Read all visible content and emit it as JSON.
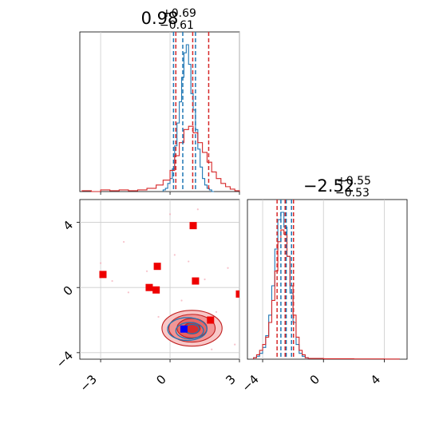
{
  "chart_data": [
    {
      "type": "histogram",
      "panel": "top-left",
      "title": {
        "median": "0.98",
        "upper": "+0.69",
        "lower": "−0.61"
      },
      "xlim": [
        -3.9,
        3.0
      ],
      "grid": true,
      "x_ticks": [
        -3,
        0,
        3
      ],
      "series": [
        {
          "name": "",
          "color": "#1f77b4",
          "bins": [
            -0.3,
            -0.2,
            -0.1,
            0.0,
            0.1,
            0.2,
            0.3,
            0.4,
            0.5,
            0.6,
            0.7,
            0.8,
            0.9,
            1.0,
            1.1,
            1.2,
            1.3,
            1.4,
            1.5,
            1.6,
            1.7,
            1.8,
            1.9
          ],
          "counts": [
            0.01,
            0.02,
            0.05,
            0.08,
            0.14,
            0.28,
            0.42,
            0.55,
            0.7,
            0.85,
            0.9,
            0.78,
            0.6,
            0.5,
            0.38,
            0.26,
            0.15,
            0.08,
            0.04,
            0.02,
            0.01,
            0.0
          ],
          "quantiles": [
            0.15,
            0.55,
            1.1
          ]
        },
        {
          "name": "",
          "color": "#d62728",
          "bins": [
            -3.8,
            -3.4,
            -3.0,
            -2.6,
            -2.2,
            -1.8,
            -1.4,
            -1.0,
            -0.6,
            -0.3,
            0.0,
            0.2,
            0.4,
            0.6,
            0.8,
            1.0,
            1.2,
            1.4,
            1.6,
            1.8,
            2.0,
            2.2,
            2.4,
            2.6,
            2.8,
            3.0
          ],
          "counts": [
            0.005,
            0.0,
            0.01,
            0.005,
            0.01,
            0.005,
            0.01,
            0.02,
            0.04,
            0.07,
            0.13,
            0.22,
            0.3,
            0.38,
            0.4,
            0.36,
            0.3,
            0.24,
            0.18,
            0.12,
            0.08,
            0.05,
            0.03,
            0.015,
            0.005
          ],
          "quantiles": [
            0.25,
            0.98,
            1.67
          ]
        }
      ]
    },
    {
      "type": "histogram",
      "panel": "bottom-right",
      "title": {
        "median": "−2.52",
        "upper": "+0.55",
        "lower": "−0.53"
      },
      "xlim": [
        -5.0,
        5.5
      ],
      "grid": true,
      "x_ticks": [
        -4,
        0,
        4
      ],
      "series": [
        {
          "name": "",
          "color": "#1f77b4",
          "bins": [
            -4.6,
            -4.4,
            -4.2,
            -4.0,
            -3.8,
            -3.6,
            -3.4,
            -3.2,
            -3.0,
            -2.8,
            -2.6,
            -2.4,
            -2.2,
            -2.0,
            -1.8,
            -1.6,
            -1.4,
            -1.2,
            -1.0
          ],
          "counts": [
            0.01,
            0.02,
            0.04,
            0.08,
            0.16,
            0.3,
            0.5,
            0.75,
            0.95,
            1.0,
            0.9,
            0.7,
            0.45,
            0.25,
            0.1,
            0.04,
            0.02,
            0.01
          ],
          "quantiles": [
            -2.8,
            -2.45,
            -2.1
          ]
        },
        {
          "name": "",
          "color": "#d62728",
          "bins": [
            -4.6,
            -4.4,
            -4.2,
            -4.0,
            -3.8,
            -3.6,
            -3.4,
            -3.2,
            -3.0,
            -2.8,
            -2.6,
            -2.4,
            -2.2,
            -2.0,
            -1.8,
            -1.6,
            -1.4,
            -1.2,
            -1.0,
            -0.5,
            0.0,
            1.0,
            2.0,
            3.0,
            4.0,
            5.0
          ],
          "counts": [
            0.01,
            0.03,
            0.06,
            0.1,
            0.15,
            0.25,
            0.4,
            0.6,
            0.8,
            0.88,
            0.85,
            0.7,
            0.5,
            0.3,
            0.15,
            0.06,
            0.03,
            0.01,
            0.005,
            0.005,
            0.003,
            0.003,
            0.002,
            0.002,
            0.001
          ],
          "quantiles": [
            -3.05,
            -2.52,
            -1.97
          ]
        }
      ]
    },
    {
      "type": "contour",
      "panel": "bottom-left",
      "xlim": [
        -3.9,
        3.0
      ],
      "ylim": [
        -4.4,
        5.4
      ],
      "x_ticks": [
        -3,
        0,
        3
      ],
      "y_ticks": [
        -4,
        0,
        4
      ],
      "grid": true,
      "series": [
        {
          "name": "",
          "color": "#d62728",
          "center": [
            0.95,
            -2.5
          ],
          "levels": [
            [
              1.3,
              1.1
            ],
            [
              1.0,
              0.85
            ],
            [
              0.65,
              0.6
            ],
            [
              0.35,
              0.35
            ]
          ],
          "scatter_light": [
            [
              -3.0,
              1.5
            ],
            [
              -2.5,
              0.4
            ],
            [
              -1.8,
              -0.3
            ],
            [
              -1.0,
              1.0
            ],
            [
              -0.5,
              -1.8
            ],
            [
              0.2,
              2.0
            ],
            [
              0.5,
              -0.8
            ],
            [
              1.5,
              0.5
            ],
            [
              2.0,
              -1.5
            ],
            [
              2.5,
              1.2
            ],
            [
              2.8,
              -3.5
            ],
            [
              -0.2,
              -3.0
            ],
            [
              1.8,
              -3.8
            ],
            [
              0.0,
              4.5
            ],
            [
              1.2,
              4.8
            ],
            [
              -2.0,
              2.8
            ],
            [
              2.2,
              -2.2
            ],
            [
              0.8,
              1.6
            ]
          ],
          "outliers": [
            [
              -2.9,
              0.8
            ],
            [
              -0.9,
              0.0
            ],
            [
              -0.6,
              -0.15
            ],
            [
              -0.55,
              1.3
            ],
            [
              1.0,
              3.8
            ],
            [
              1.1,
              0.4
            ],
            [
              3.0,
              -0.4
            ],
            [
              3.5,
              0.45
            ],
            [
              1.75,
              -2.0
            ]
          ]
        },
        {
          "name": "",
          "color": "#1f77b4",
          "center": [
            0.85,
            -2.55
          ],
          "levels": [
            [
              0.85,
              0.7
            ],
            [
              0.6,
              0.5
            ],
            [
              0.3,
              0.28
            ]
          ],
          "outliers": []
        }
      ],
      "truth_marker": {
        "x": 0.6,
        "y": -2.55,
        "color": "#0000ff"
      }
    }
  ]
}
